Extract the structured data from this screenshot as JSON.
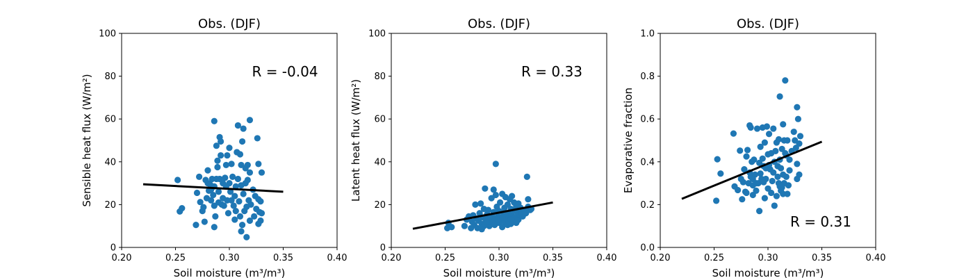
{
  "chart_data": [
    {
      "type": "scatter",
      "title": "Obs. (DJF)",
      "xlabel": "Soil moisture (m³/m³)",
      "ylabel": "Sensible heat flux (W/m²)",
      "xlim": [
        0.2,
        0.4
      ],
      "ylim": [
        0,
        100
      ],
      "xticks": [
        "0.20",
        "0.25",
        "0.30",
        "0.35",
        "0.40"
      ],
      "yticks": [
        "0",
        "20",
        "40",
        "60",
        "80",
        "100"
      ],
      "r_label": "R = -0.04",
      "marker_color": "#1f77b4",
      "line_color": "#000000",
      "fit_line": {
        "x": [
          0.22,
          0.35
        ],
        "y": [
          29.5,
          26.0
        ]
      },
      "points": [
        [
          0.252,
          31.5
        ],
        [
          0.254,
          16.8
        ],
        [
          0.256,
          18.3
        ],
        [
          0.269,
          10.5
        ],
        [
          0.27,
          25.5
        ],
        [
          0.272,
          33.0
        ],
        [
          0.273,
          21.2
        ],
        [
          0.275,
          17.0
        ],
        [
          0.276,
          18.8
        ],
        [
          0.277,
          12.0
        ],
        [
          0.278,
          31.5
        ],
        [
          0.279,
          23.0
        ],
        [
          0.28,
          30.0
        ],
        [
          0.28,
          36.0
        ],
        [
          0.281,
          26.5
        ],
        [
          0.282,
          29.5
        ],
        [
          0.283,
          27.0
        ],
        [
          0.283,
          22.0
        ],
        [
          0.284,
          32.0
        ],
        [
          0.285,
          24.5
        ],
        [
          0.286,
          19.5
        ],
        [
          0.286,
          28.5
        ],
        [
          0.286,
          9.5
        ],
        [
          0.287,
          14.5
        ],
        [
          0.288,
          47.5
        ],
        [
          0.288,
          32.0
        ],
        [
          0.289,
          40.5
        ],
        [
          0.289,
          37.5
        ],
        [
          0.29,
          26.0
        ],
        [
          0.29,
          21.0
        ],
        [
          0.291,
          51.5
        ],
        [
          0.291,
          32.0
        ],
        [
          0.292,
          49.5
        ],
        [
          0.292,
          43.0
        ],
        [
          0.293,
          20.0
        ],
        [
          0.294,
          23.0
        ],
        [
          0.294,
          30.0
        ],
        [
          0.295,
          19.5
        ],
        [
          0.296,
          32.5
        ],
        [
          0.297,
          38.5
        ],
        [
          0.297,
          28.5
        ],
        [
          0.298,
          22.0
        ],
        [
          0.298,
          43.0
        ],
        [
          0.299,
          16.0
        ],
        [
          0.3,
          46.5
        ],
        [
          0.3,
          30.0
        ],
        [
          0.301,
          26.0
        ],
        [
          0.302,
          39.0
        ],
        [
          0.302,
          22.0
        ],
        [
          0.303,
          33.0
        ],
        [
          0.304,
          19.5
        ],
        [
          0.305,
          13.0
        ],
        [
          0.305,
          24.0
        ],
        [
          0.306,
          28.5
        ],
        [
          0.306,
          17.0
        ],
        [
          0.307,
          44.5
        ],
        [
          0.308,
          57.0
        ],
        [
          0.308,
          32.0
        ],
        [
          0.309,
          21.5
        ],
        [
          0.31,
          43.5
        ],
        [
          0.31,
          14.5
        ],
        [
          0.311,
          38.5
        ],
        [
          0.311,
          29.0
        ],
        [
          0.311,
          7.5
        ],
        [
          0.312,
          10.5
        ],
        [
          0.312,
          49.5
        ],
        [
          0.313,
          55.5
        ],
        [
          0.313,
          25.0
        ],
        [
          0.314,
          17.0
        ],
        [
          0.315,
          37.0
        ],
        [
          0.315,
          30.0
        ],
        [
          0.316,
          4.8
        ],
        [
          0.316,
          19.0
        ],
        [
          0.317,
          38.5
        ],
        [
          0.317,
          31.5
        ],
        [
          0.318,
          22.0
        ],
        [
          0.319,
          12.5
        ],
        [
          0.319,
          35.0
        ],
        [
          0.319,
          59.5
        ],
        [
          0.32,
          20.0
        ],
        [
          0.322,
          27.0
        ],
        [
          0.323,
          14.5
        ],
        [
          0.324,
          24.0
        ],
        [
          0.325,
          18.0
        ],
        [
          0.326,
          51.0
        ],
        [
          0.327,
          39.0
        ],
        [
          0.327,
          22.5
        ],
        [
          0.327,
          11.0
        ],
        [
          0.328,
          16.5
        ],
        [
          0.329,
          21.5
        ],
        [
          0.329,
          12.5
        ],
        [
          0.33,
          35.0
        ],
        [
          0.33,
          16.0
        ],
        [
          0.286,
          59.0
        ]
      ]
    },
    {
      "type": "scatter",
      "title": "Obs. (DJF)",
      "xlabel": "Soil moisture (m³/m³)",
      "ylabel": "Latent heat flux (W/m²)",
      "xlim": [
        0.2,
        0.4
      ],
      "ylim": [
        0,
        100
      ],
      "xticks": [
        "0.20",
        "0.25",
        "0.30",
        "0.35",
        "0.40"
      ],
      "yticks": [
        "0",
        "20",
        "40",
        "60",
        "80",
        "100"
      ],
      "r_label": "R = 0.33",
      "marker_color": "#1f77b4",
      "line_color": "#000000",
      "fit_line": {
        "x": [
          0.22,
          0.35
        ],
        "y": [
          8.7,
          21.0
        ]
      },
      "points": [
        [
          0.252,
          9.0
        ],
        [
          0.253,
          11.5
        ],
        [
          0.256,
          9.5
        ],
        [
          0.268,
          10.0
        ],
        [
          0.27,
          13.0
        ],
        [
          0.272,
          14.5
        ],
        [
          0.274,
          9.0
        ],
        [
          0.275,
          12.0
        ],
        [
          0.276,
          15.0
        ],
        [
          0.277,
          10.5
        ],
        [
          0.278,
          20.0
        ],
        [
          0.279,
          13.5
        ],
        [
          0.28,
          9.0
        ],
        [
          0.281,
          12.5
        ],
        [
          0.282,
          16.0
        ],
        [
          0.283,
          20.5
        ],
        [
          0.284,
          11.0
        ],
        [
          0.285,
          14.0
        ],
        [
          0.286,
          18.0
        ],
        [
          0.287,
          27.5
        ],
        [
          0.288,
          13.0
        ],
        [
          0.289,
          15.5
        ],
        [
          0.29,
          17.5
        ],
        [
          0.291,
          10.0
        ],
        [
          0.292,
          12.0
        ],
        [
          0.293,
          23.0
        ],
        [
          0.294,
          14.0
        ],
        [
          0.295,
          27.0
        ],
        [
          0.295,
          16.5
        ],
        [
          0.296,
          12.5
        ],
        [
          0.297,
          24.5
        ],
        [
          0.297,
          39.0
        ],
        [
          0.298,
          19.0
        ],
        [
          0.299,
          14.5
        ],
        [
          0.3,
          11.5
        ],
        [
          0.3,
          17.0
        ],
        [
          0.301,
          21.0
        ],
        [
          0.302,
          13.0
        ],
        [
          0.303,
          25.0
        ],
        [
          0.303,
          9.5
        ],
        [
          0.304,
          16.0
        ],
        [
          0.305,
          18.5
        ],
        [
          0.305,
          12.0
        ],
        [
          0.306,
          23.5
        ],
        [
          0.307,
          14.0
        ],
        [
          0.308,
          10.5
        ],
        [
          0.308,
          20.0
        ],
        [
          0.309,
          16.0
        ],
        [
          0.31,
          13.5
        ],
        [
          0.31,
          22.5
        ],
        [
          0.311,
          11.0
        ],
        [
          0.311,
          18.0
        ],
        [
          0.312,
          15.0
        ],
        [
          0.312,
          24.0
        ],
        [
          0.313,
          12.5
        ],
        [
          0.314,
          17.5
        ],
        [
          0.314,
          21.0
        ],
        [
          0.315,
          14.0
        ],
        [
          0.316,
          19.5
        ],
        [
          0.316,
          11.5
        ],
        [
          0.317,
          16.5
        ],
        [
          0.318,
          13.0
        ],
        [
          0.318,
          20.5
        ],
        [
          0.319,
          15.5
        ],
        [
          0.32,
          18.5
        ],
        [
          0.322,
          14.5
        ],
        [
          0.324,
          17.0
        ],
        [
          0.325,
          16.0
        ],
        [
          0.326,
          33.0
        ],
        [
          0.327,
          22.5
        ],
        [
          0.327,
          19.0
        ],
        [
          0.328,
          18.0
        ],
        [
          0.329,
          17.5
        ],
        [
          0.33,
          18.0
        ],
        [
          0.286,
          10.0
        ],
        [
          0.288,
          12.0
        ],
        [
          0.291,
          14.0
        ],
        [
          0.294,
          11.5
        ],
        [
          0.299,
          13.0
        ],
        [
          0.306,
          15.0
        ],
        [
          0.309,
          12.0
        ],
        [
          0.313,
          17.0
        ],
        [
          0.317,
          12.5
        ],
        [
          0.32,
          16.5
        ],
        [
          0.284,
          8.5
        ],
        [
          0.296,
          10.5
        ],
        [
          0.303,
          14.0
        ],
        [
          0.311,
          13.0
        ],
        [
          0.321,
          16.0
        ],
        [
          0.323,
          15.5
        ]
      ]
    },
    {
      "type": "scatter",
      "title": "Obs. (DJF)",
      "xlabel": "Soil moisture (m³/m³)",
      "ylabel": "Evaporative fraction",
      "xlim": [
        0.2,
        0.4
      ],
      "ylim": [
        0.0,
        1.0
      ],
      "xticks": [
        "0.20",
        "0.25",
        "0.30",
        "0.35",
        "0.40"
      ],
      "yticks": [
        "0.0",
        "0.2",
        "0.4",
        "0.6",
        "0.8",
        "1.0"
      ],
      "r_label": "R = 0.31",
      "marker_color": "#1f77b4",
      "line_color": "#000000",
      "fit_line": {
        "x": [
          0.22,
          0.35
        ],
        "y": [
          0.227,
          0.494
        ]
      },
      "points": [
        [
          0.252,
          0.218
        ],
        [
          0.253,
          0.412
        ],
        [
          0.256,
          0.345
        ],
        [
          0.268,
          0.532
        ],
        [
          0.269,
          0.285
        ],
        [
          0.272,
          0.268
        ],
        [
          0.274,
          0.452
        ],
        [
          0.275,
          0.32
        ],
        [
          0.276,
          0.225
        ],
        [
          0.277,
          0.305
        ],
        [
          0.278,
          0.365
        ],
        [
          0.279,
          0.26
        ],
        [
          0.28,
          0.425
        ],
        [
          0.28,
          0.255
        ],
        [
          0.281,
          0.455
        ],
        [
          0.282,
          0.3
        ],
        [
          0.283,
          0.57
        ],
        [
          0.284,
          0.33
        ],
        [
          0.284,
          0.56
        ],
        [
          0.285,
          0.4
        ],
        [
          0.286,
          0.29
        ],
        [
          0.286,
          0.245
        ],
        [
          0.287,
          0.41
        ],
        [
          0.288,
          0.34
        ],
        [
          0.289,
          0.265
        ],
        [
          0.29,
          0.555
        ],
        [
          0.291,
          0.3
        ],
        [
          0.292,
          0.17
        ],
        [
          0.292,
          0.395
        ],
        [
          0.293,
          0.47
        ],
        [
          0.294,
          0.32
        ],
        [
          0.295,
          0.56
        ],
        [
          0.295,
          0.415
        ],
        [
          0.296,
          0.38
        ],
        [
          0.297,
          0.23
        ],
        [
          0.297,
          0.49
        ],
        [
          0.298,
          0.37
        ],
        [
          0.299,
          0.565
        ],
        [
          0.3,
          0.275
        ],
        [
          0.3,
          0.435
        ],
        [
          0.301,
          0.53
        ],
        [
          0.302,
          0.365
        ],
        [
          0.303,
          0.44
        ],
        [
          0.303,
          0.255
        ],
        [
          0.304,
          0.31
        ],
        [
          0.305,
          0.555
        ],
        [
          0.306,
          0.4
        ],
        [
          0.306,
          0.195
        ],
        [
          0.307,
          0.45
        ],
        [
          0.308,
          0.49
        ],
        [
          0.308,
          0.24
        ],
        [
          0.309,
          0.38
        ],
        [
          0.31,
          0.3
        ],
        [
          0.31,
          0.505
        ],
        [
          0.311,
          0.705
        ],
        [
          0.311,
          0.41
        ],
        [
          0.312,
          0.265
        ],
        [
          0.312,
          0.37
        ],
        [
          0.313,
          0.28
        ],
        [
          0.313,
          0.46
        ],
        [
          0.314,
          0.25
        ],
        [
          0.314,
          0.575
        ],
        [
          0.315,
          0.5
        ],
        [
          0.315,
          0.3
        ],
        [
          0.316,
          0.78
        ],
        [
          0.316,
          0.44
        ],
        [
          0.317,
          0.43
        ],
        [
          0.317,
          0.33
        ],
        [
          0.318,
          0.5
        ],
        [
          0.318,
          0.25
        ],
        [
          0.319,
          0.29
        ],
        [
          0.32,
          0.41
        ],
        [
          0.32,
          0.36
        ],
        [
          0.322,
          0.45
        ],
        [
          0.324,
          0.54
        ],
        [
          0.325,
          0.5
        ],
        [
          0.326,
          0.465
        ],
        [
          0.327,
          0.39
        ],
        [
          0.327,
          0.655
        ],
        [
          0.327,
          0.32
        ],
        [
          0.328,
          0.6
        ],
        [
          0.329,
          0.485
        ],
        [
          0.329,
          0.34
        ],
        [
          0.33,
          0.52
        ],
        [
          0.286,
          0.32
        ],
        [
          0.289,
          0.3
        ],
        [
          0.293,
          0.345
        ],
        [
          0.298,
          0.32
        ],
        [
          0.301,
          0.385
        ],
        [
          0.305,
          0.35
        ],
        [
          0.309,
          0.33
        ],
        [
          0.311,
          0.285
        ],
        [
          0.314,
          0.34
        ],
        [
          0.283,
          0.35
        ],
        [
          0.296,
          0.305
        ]
      ]
    }
  ]
}
